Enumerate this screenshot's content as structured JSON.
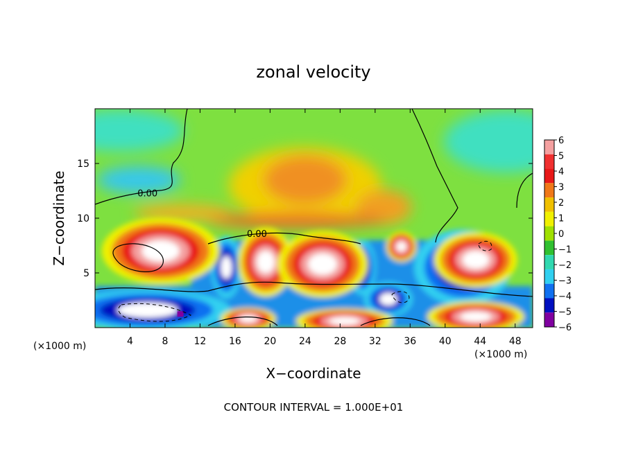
{
  "chart_data": {
    "type": "heatmap",
    "title": "zonal velocity",
    "xlabel": "X−coordinate",
    "ylabel": "Z−coordinate",
    "x_unit_left": "(×1000 m)",
    "x_unit_right": "(×1000 m)",
    "footer": "CONTOUR INTERVAL = 1.000E+01",
    "xlim": [
      0,
      50
    ],
    "ylim": [
      0,
      20
    ],
    "xticks": [
      4,
      8,
      12,
      16,
      20,
      24,
      28,
      32,
      36,
      40,
      44,
      48
    ],
    "xtick_labels": [
      "4",
      "8",
      "12",
      "16",
      "20",
      "24",
      "28",
      "32",
      "36",
      "40",
      "44",
      "48"
    ],
    "yticks": [
      5,
      10,
      15
    ],
    "ytick_labels": [
      "5",
      "10",
      "15"
    ],
    "colorbar": {
      "levels": [
        6,
        5,
        4,
        3,
        2,
        1,
        0,
        -1,
        -2,
        -3,
        -4,
        -5,
        -6
      ],
      "labels": [
        "6",
        "5",
        "4",
        "3",
        "2",
        "1",
        "0",
        "−1",
        "−2",
        "−3",
        "−4",
        "−5",
        "−6"
      ],
      "colors": [
        "#f4a0a0",
        "#f03030",
        "#e81818",
        "#f07818",
        "#f0c000",
        "#f0f000",
        "#a0e000",
        "#30c030",
        "#30d8b0",
        "#30d0f0",
        "#1070f0",
        "#0010c0",
        "#8000a0"
      ]
    },
    "contour_labels": [
      {
        "text": "0.00",
        "x": 6.0,
        "y": 12.0
      },
      {
        "text": "0.00",
        "x": 18.5,
        "y": 8.3
      }
    ],
    "features": [
      {
        "kind": "positive-core",
        "x": 7.5,
        "y": 7.0
      },
      {
        "kind": "positive-core",
        "x": 19.5,
        "y": 6.0
      },
      {
        "kind": "positive-core",
        "x": 26.0,
        "y": 5.5
      },
      {
        "kind": "positive-core",
        "x": 35.0,
        "y": 7.5
      },
      {
        "kind": "positive-core",
        "x": 43.5,
        "y": 6.0
      },
      {
        "kind": "negative-core",
        "x": 6.0,
        "y": 1.5
      },
      {
        "kind": "negative-core",
        "x": 34.0,
        "y": 2.5
      },
      {
        "kind": "positive-core",
        "x": 43.0,
        "y": 1.0
      },
      {
        "kind": "positive-core",
        "x": 28.0,
        "y": 0.8
      },
      {
        "kind": "positive-core",
        "x": 17.5,
        "y": 0.8
      }
    ]
  }
}
